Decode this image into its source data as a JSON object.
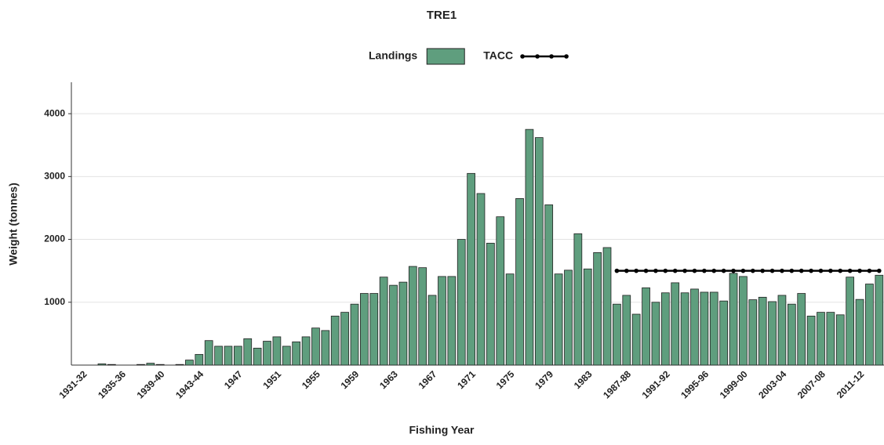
{
  "chart_data": {
    "type": "bar",
    "title": "TRE1",
    "x_label": "Fishing Year",
    "y_label": "Weight (tonnes)",
    "legend": "top",
    "grid": true,
    "categories": [
      "1931-32",
      null,
      null,
      null,
      "1935-36",
      null,
      null,
      null,
      "1939-40",
      null,
      null,
      null,
      "1943-44",
      null,
      null,
      null,
      "1947",
      null,
      null,
      null,
      "1951",
      null,
      null,
      null,
      "1955",
      null,
      null,
      null,
      "1959",
      null,
      null,
      null,
      "1963",
      null,
      null,
      null,
      "1967",
      null,
      null,
      null,
      "1971",
      null,
      null,
      null,
      "1975",
      null,
      null,
      null,
      "1979",
      null,
      null,
      null,
      "1983",
      null,
      null,
      null,
      "1987-88",
      null,
      null,
      null,
      "1991-92",
      null,
      null,
      null,
      "1995-96",
      null,
      null,
      null,
      "1999-00",
      null,
      null,
      null,
      "2003-04",
      null,
      null,
      null,
      "2007-08",
      null,
      null,
      null,
      "2011-12",
      null,
      null
    ],
    "series": [
      {
        "name": "Landings",
        "type": "bar",
        "color": "#5f9e7e",
        "values": [
          0,
          0,
          20,
          10,
          0,
          0,
          10,
          30,
          10,
          0,
          10,
          80,
          170,
          390,
          300,
          300,
          300,
          420,
          270,
          380,
          450,
          300,
          370,
          450,
          590,
          550,
          780,
          840,
          970,
          1140,
          1140,
          1400,
          1270,
          1320,
          1570,
          1550,
          1110,
          1410,
          1410,
          2000,
          3050,
          2730,
          1940,
          2360,
          1450,
          2650,
          3750,
          3620,
          2550,
          1450,
          1510,
          2090,
          1530,
          1790,
          1870,
          970,
          1110,
          810,
          1230,
          1000,
          1150,
          1310,
          1150,
          1210,
          1160,
          1160,
          1020,
          1460,
          1410,
          1040,
          1080,
          1010,
          1110,
          970,
          1140,
          780,
          840,
          840,
          800,
          1400,
          1045,
          1290,
          1430
        ]
      },
      {
        "name": "TACC",
        "type": "line",
        "color": "#000000",
        "values": [
          null,
          null,
          null,
          null,
          null,
          null,
          null,
          null,
          null,
          null,
          null,
          null,
          null,
          null,
          null,
          null,
          null,
          null,
          null,
          null,
          null,
          null,
          null,
          null,
          null,
          null,
          null,
          null,
          null,
          null,
          null,
          null,
          null,
          null,
          null,
          null,
          null,
          null,
          null,
          null,
          null,
          null,
          null,
          null,
          null,
          null,
          null,
          null,
          null,
          null,
          null,
          null,
          null,
          null,
          null,
          1500,
          1500,
          1500,
          1500,
          1500,
          1500,
          1500,
          1500,
          1500,
          1500,
          1500,
          1500,
          1500,
          1500,
          1500,
          1500,
          1500,
          1500,
          1500,
          1500,
          1500,
          1500,
          1500,
          1500,
          1500,
          1500,
          1500,
          1500
        ]
      }
    ],
    "ylim": [
      0,
      4500
    ],
    "yticks": [
      1000,
      2000,
      3000,
      4000
    ]
  }
}
